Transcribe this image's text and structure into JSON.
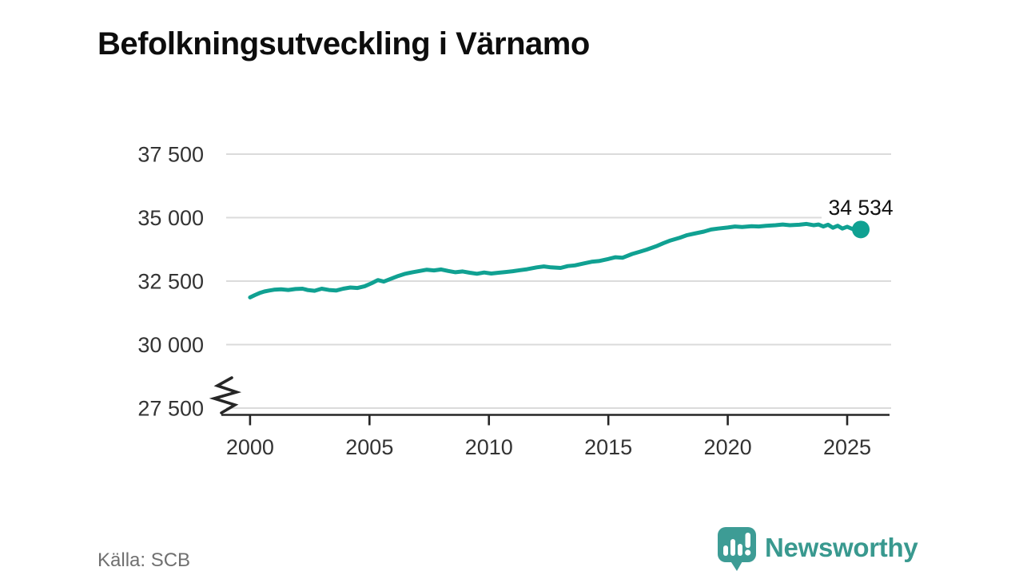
{
  "header": {
    "title": "Befolkningsutveckling i Värnamo"
  },
  "footer": {
    "source": "Källa: SCB",
    "brand_name": "Newsworthy",
    "brand_icon": "newsworthy-speech-bubble-bar-chart-icon"
  },
  "colors": {
    "line": "#10A192",
    "logo": "#3D9C95",
    "logo_text": "#39998F",
    "grid": "#DBDBDB",
    "axis": "#262626",
    "tick_label": "#333333",
    "title_text": "#0D0D0D",
    "source_text": "#707070",
    "value_label": "#111111"
  },
  "chart_data": {
    "type": "line",
    "title": "Befolkningsutveckling i Värnamo",
    "xlabel": "",
    "ylabel": "",
    "grid": true,
    "legend": "none",
    "y_axis_break": true,
    "x_domain": [
      1999.0,
      2026.84
    ],
    "y_domain": [
      27500,
      37500
    ],
    "x_ticks": [
      2000,
      2005,
      2010,
      2015,
      2020,
      2025
    ],
    "y_ticks": [
      {
        "value": 37500,
        "label": "37 500"
      },
      {
        "value": 35000,
        "label": "35 000"
      },
      {
        "value": 32500,
        "label": "32 500"
      },
      {
        "value": 30000,
        "label": "30 000"
      },
      {
        "value": 27500,
        "label": "27 500"
      }
    ],
    "end_label": "34 534",
    "end_value": 34534,
    "series": [
      {
        "name": "Befolkning i Värnamo",
        "color": "#10A192",
        "points": [
          [
            2000.0,
            31860
          ],
          [
            2000.2,
            31950
          ],
          [
            2000.4,
            32030
          ],
          [
            2000.6,
            32090
          ],
          [
            2000.8,
            32130
          ],
          [
            2001.0,
            32160
          ],
          [
            2001.3,
            32180
          ],
          [
            2001.6,
            32150
          ],
          [
            2001.9,
            32190
          ],
          [
            2002.2,
            32200
          ],
          [
            2002.4,
            32150
          ],
          [
            2002.7,
            32120
          ],
          [
            2003.0,
            32200
          ],
          [
            2003.3,
            32150
          ],
          [
            2003.6,
            32130
          ],
          [
            2003.9,
            32200
          ],
          [
            2004.2,
            32250
          ],
          [
            2004.5,
            32230
          ],
          [
            2004.8,
            32300
          ],
          [
            2005.1,
            32420
          ],
          [
            2005.35,
            32540
          ],
          [
            2005.6,
            32480
          ],
          [
            2005.9,
            32590
          ],
          [
            2006.2,
            32700
          ],
          [
            2006.5,
            32790
          ],
          [
            2006.8,
            32850
          ],
          [
            2007.1,
            32900
          ],
          [
            2007.4,
            32950
          ],
          [
            2007.7,
            32920
          ],
          [
            2008.0,
            32960
          ],
          [
            2008.3,
            32900
          ],
          [
            2008.6,
            32850
          ],
          [
            2008.9,
            32880
          ],
          [
            2009.2,
            32830
          ],
          [
            2009.5,
            32790
          ],
          [
            2009.8,
            32840
          ],
          [
            2010.1,
            32800
          ],
          [
            2010.4,
            32830
          ],
          [
            2010.7,
            32860
          ],
          [
            2011.0,
            32890
          ],
          [
            2011.3,
            32930
          ],
          [
            2011.6,
            32970
          ],
          [
            2012.0,
            33040
          ],
          [
            2012.3,
            33080
          ],
          [
            2012.6,
            33040
          ],
          [
            2013.0,
            33020
          ],
          [
            2013.3,
            33090
          ],
          [
            2013.6,
            33120
          ],
          [
            2014.0,
            33200
          ],
          [
            2014.3,
            33260
          ],
          [
            2014.6,
            33290
          ],
          [
            2015.0,
            33370
          ],
          [
            2015.3,
            33440
          ],
          [
            2015.6,
            33420
          ],
          [
            2016.0,
            33570
          ],
          [
            2016.3,
            33650
          ],
          [
            2016.6,
            33740
          ],
          [
            2017.0,
            33870
          ],
          [
            2017.3,
            33990
          ],
          [
            2017.6,
            34100
          ],
          [
            2018.0,
            34210
          ],
          [
            2018.3,
            34310
          ],
          [
            2018.6,
            34370
          ],
          [
            2019.0,
            34450
          ],
          [
            2019.3,
            34530
          ],
          [
            2019.6,
            34570
          ],
          [
            2020.0,
            34610
          ],
          [
            2020.3,
            34650
          ],
          [
            2020.6,
            34630
          ],
          [
            2021.0,
            34660
          ],
          [
            2021.3,
            34650
          ],
          [
            2021.6,
            34680
          ],
          [
            2022.0,
            34700
          ],
          [
            2022.3,
            34730
          ],
          [
            2022.6,
            34700
          ],
          [
            2023.0,
            34720
          ],
          [
            2023.3,
            34750
          ],
          [
            2023.6,
            34700
          ],
          [
            2023.8,
            34730
          ],
          [
            2024.0,
            34650
          ],
          [
            2024.2,
            34720
          ],
          [
            2024.4,
            34600
          ],
          [
            2024.6,
            34680
          ],
          [
            2024.8,
            34570
          ],
          [
            2025.0,
            34640
          ],
          [
            2025.2,
            34560
          ],
          [
            2025.4,
            34600
          ],
          [
            2025.57,
            34534
          ]
        ]
      }
    ]
  }
}
